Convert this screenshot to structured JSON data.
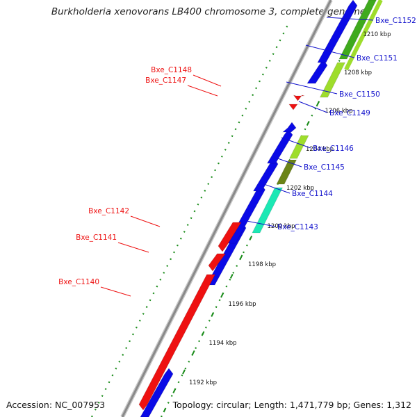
{
  "header": {
    "title": "Burkholderia xenovorans LB400 chromosome 3, complete genome"
  },
  "footer": {
    "accession": "Accession: NC_007953",
    "topology": "Topology: circular; Length: 1,471,779 bp; Genes: 1,312"
  },
  "colors": {
    "forward_label": "#1010cc",
    "reverse_label": "#ee1111",
    "forward_cds": "#0a0ae6",
    "reverse_cds": "#ee1111",
    "backbone": "#8a8a8a",
    "ruler_dots": "#1a8c1a",
    "cog_lime": "#9edd2c",
    "cog_green": "#3faa1e",
    "cog_olive": "#6b8418",
    "cog_cyan": "#1ce8b4"
  },
  "kbp_labels": [
    "1192 kbp",
    "1194 kbp",
    "1196 kbp",
    "1198 kbp",
    "1200 kbp",
    "1202 kbp",
    "1204 kbp",
    "1206 kbp",
    "1208 kbp",
    "1210 kbp"
  ],
  "forward_genes": [
    "Bxe_C1152",
    "Bxe_C1151",
    "Bxe_C1150",
    "Bxe_C1149",
    "Bxe_C1146",
    "Bxe_C1145",
    "Bxe_C1144",
    "Bxe_C1143"
  ],
  "reverse_genes": [
    "Bxe_C1148",
    "Bxe_C1147",
    "Bxe_C1142",
    "Bxe_C1141",
    "Bxe_C1140"
  ]
}
